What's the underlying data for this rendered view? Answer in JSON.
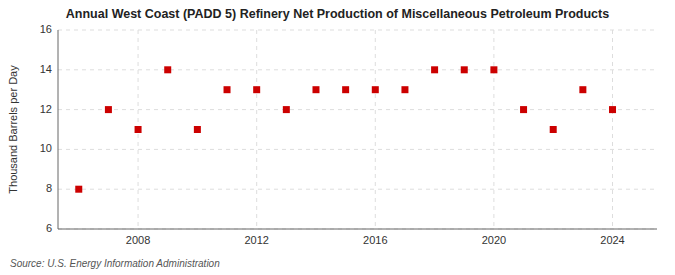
{
  "chart_data": {
    "type": "scatter",
    "title": "Annual West Coast (PADD 5) Refinery Net Production of Miscellaneous Petroleum Products",
    "y_label": "Thousand Barrels per Day",
    "source": "Source: U.S. Energy Information Administration",
    "x": [
      2006,
      2007,
      2008,
      2009,
      2010,
      2011,
      2012,
      2013,
      2014,
      2015,
      2016,
      2017,
      2018,
      2019,
      2020,
      2021,
      2022,
      2023,
      2024
    ],
    "values": [
      8,
      12,
      11,
      14,
      11,
      13,
      13,
      12,
      13,
      13,
      13,
      13,
      14,
      14,
      14,
      12,
      11,
      13,
      12
    ],
    "xlim": [
      2005.3,
      2025.5
    ],
    "xticks": [
      2008,
      2012,
      2016,
      2020,
      2024
    ],
    "ylim": [
      6,
      16
    ],
    "yticks": [
      6,
      8,
      10,
      12,
      14,
      16
    ],
    "color": "#cc0000",
    "marker": "square",
    "grid": true
  }
}
